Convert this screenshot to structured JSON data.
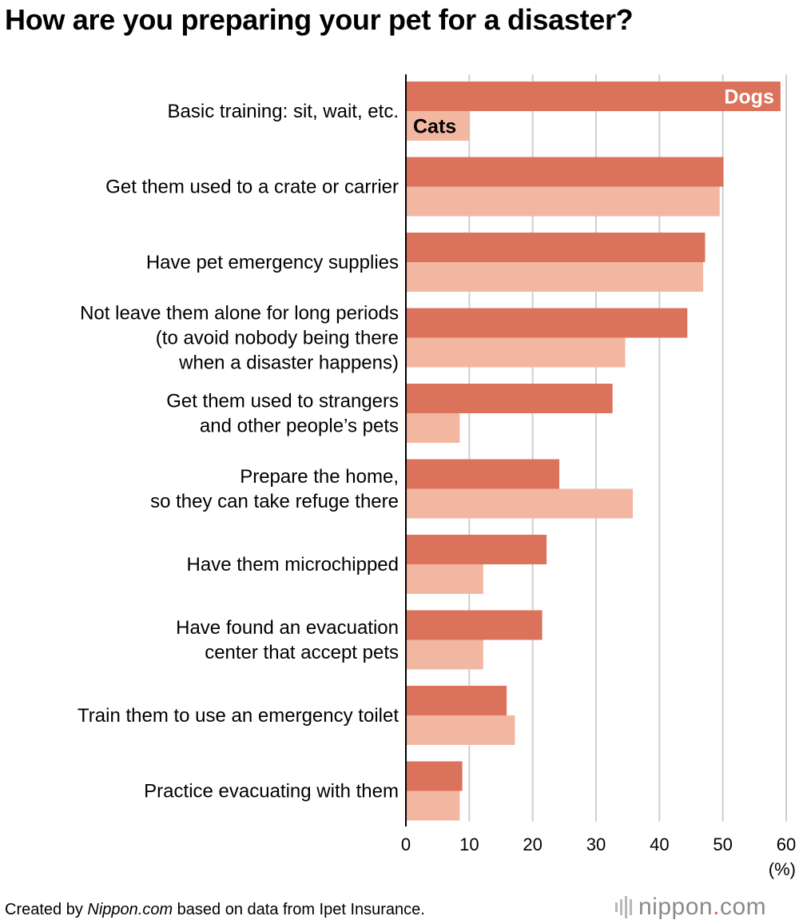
{
  "title": "How are you preparing your pet for a disaster?",
  "footer": {
    "prefix": "Created by ",
    "source_name": "Nippon.com",
    "suffix": " based on data from Ipet Insurance."
  },
  "logo": {
    "name": "nippon",
    "dot": ".",
    "tld": "com",
    "icon": "sound-bars-icon"
  },
  "colors": {
    "dogs": "#db725b",
    "cats": "#f2b7a1",
    "grid": "#cfcfcf",
    "axis": "#000000"
  },
  "chart_data": {
    "type": "bar",
    "orientation": "horizontal",
    "title": "How are you preparing your pet for a disaster?",
    "xlabel": "(%)",
    "ylabel": "",
    "xlim": [
      0,
      60
    ],
    "xticks": [
      0,
      10,
      20,
      30,
      40,
      50,
      60
    ],
    "grid": true,
    "legend": "inline labels on first bars",
    "categories": [
      [
        "Basic training: sit, wait, etc."
      ],
      [
        "Get them used to a crate or carrier"
      ],
      [
        "Have pet emergency supplies"
      ],
      [
        "Not leave them alone for long periods",
        "(to avoid nobody being there",
        "when a disaster happens)"
      ],
      [
        "Get them used to strangers",
        "and other people’s pets"
      ],
      [
        "Prepare the home,",
        "so they can take refuge there"
      ],
      [
        "Have them microchipped"
      ],
      [
        "Have found an evacuation",
        "center that accept pets"
      ],
      [
        "Train them to use an emergency toilet"
      ],
      [
        "Practice evacuating with them"
      ]
    ],
    "series": [
      {
        "name": "Dogs",
        "values": [
          59.1,
          50.1,
          47.2,
          44.4,
          32.6,
          24.2,
          22.2,
          21.5,
          15.9,
          8.9
        ]
      },
      {
        "name": "Cats",
        "values": [
          10.0,
          49.5,
          46.9,
          34.6,
          8.5,
          35.8,
          12.2,
          12.2,
          17.2,
          8.5
        ]
      }
    ]
  }
}
